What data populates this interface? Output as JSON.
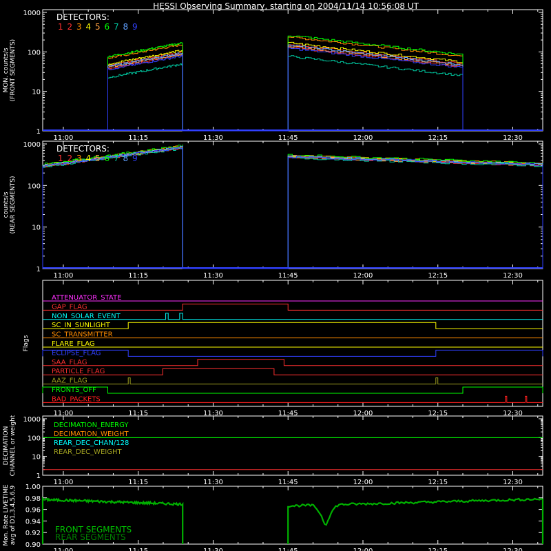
{
  "title": "HESSI Observing Summary, starting on 2004/11/14 10:56:08 UT",
  "time_ticks": [
    "11:00",
    "11:15",
    "11:30",
    "11:45",
    "12:00",
    "12:15",
    "12:30"
  ],
  "time_range_minutes": [
    -4.13,
    96.0
  ],
  "detector_colors": [
    "#ff3030",
    "#ff3030",
    "#ff8c00",
    "#ffff00",
    "#ffa040",
    "#00ff00",
    "#00c8a0",
    "#60a0ff",
    "#3040ff"
  ],
  "chart_data": [
    {
      "type": "line",
      "ylabel": [
        "MON. counts/s",
        "(FRONT SEGMENTS)"
      ],
      "ylim": [
        1,
        1000
      ],
      "log": true,
      "yticks": [
        "1",
        "10",
        "100",
        "1000"
      ],
      "legend_title": "DETECTORS:",
      "legend_numbers": [
        "1",
        "2",
        "3",
        "4",
        "5",
        "6",
        "7",
        "8",
        "9"
      ],
      "segments": [
        {
          "t_start": 8.9,
          "t_end": 23.9,
          "start_value": 45,
          "end_value": 100
        },
        {
          "t_start": 45.0,
          "t_end": 80.0,
          "start_value": 155,
          "end_value": 50
        }
      ],
      "detector_factors": [
        1.0,
        0.85,
        1.55,
        1.1,
        0.9,
        1.7,
        0.5,
        0.95,
        0.8
      ]
    },
    {
      "type": "line",
      "ylabel": [
        "counts/s",
        "(REAR SEGMENTS)"
      ],
      "ylim": [
        1,
        1000
      ],
      "log": true,
      "yticks": [
        "1",
        "10",
        "100",
        "1000"
      ],
      "legend_title": "DETECTORS:",
      "legend_numbers": [
        "1",
        "2",
        "3",
        "4",
        "5",
        "6",
        "7",
        "8",
        "9"
      ],
      "segments": [
        {
          "t_start": -4.13,
          "t_end": 23.9,
          "start_value": 300,
          "end_value": 850
        },
        {
          "t_start": 45.0,
          "t_end": 96.0,
          "start_value": 500,
          "end_value": 320
        }
      ],
      "detector_factors": [
        1.0,
        0.95,
        1.05,
        1.0,
        0.97,
        1.08,
        0.93,
        1.0,
        0.98
      ]
    },
    {
      "type": "line",
      "ylabel": [
        "Flags"
      ],
      "flags": [
        {
          "name": "ATTENUATOR_STATE",
          "color": "#ff30ff",
          "highs": []
        },
        {
          "name": "GAP_FLAG",
          "color": "#ff3030",
          "highs": [
            [
              23.9,
              45.0
            ]
          ]
        },
        {
          "name": "NON_SOLAR_EVENT",
          "color": "#00ffff",
          "highs": [
            [
              20.5,
              21.0
            ],
            [
              23.3,
              23.9
            ]
          ]
        },
        {
          "name": "SC_IN_SUNLIGHT",
          "color": "#ffff00",
          "highs": [
            [
              13.0,
              74.6
            ]
          ]
        },
        {
          "name": "SC_TRANSMITTER",
          "color": "#ff8c00",
          "highs": []
        },
        {
          "name": "FLARE_FLAG",
          "color": "#ffff00",
          "highs": []
        },
        {
          "name": "ECLIPSE_FLAG",
          "color": "#3040ff",
          "inverted": true,
          "highs": [
            [
              -4.13,
              13.0
            ],
            [
              74.6,
              96.0
            ]
          ]
        },
        {
          "name": "SAA_FLAG",
          "color": "#ff3030",
          "highs": [
            [
              26.9,
              44.2
            ]
          ]
        },
        {
          "name": "PARTICLE_FLAG",
          "color": "#ff3030",
          "highs": [
            [
              19.9,
              42.2
            ]
          ]
        },
        {
          "name": "AAZ_FLAG",
          "color": "#a0a020",
          "highs": [
            [
              13.0,
              13.4
            ],
            [
              74.6,
              75.0
            ]
          ]
        },
        {
          "name": "FRONTS_OFF",
          "color": "#00ff00",
          "inverted": true,
          "highs": [
            [
              -4.13,
              8.9
            ],
            [
              80.0,
              96.0
            ]
          ]
        },
        {
          "name": "BAD_PACKETS",
          "color": "#ff2020",
          "highs": [
            [
              88.5,
              88.8
            ],
            [
              92.5,
              92.8
            ]
          ]
        }
      ]
    },
    {
      "type": "line",
      "ylabel": [
        "DECIMATION",
        "CHANNEL or weight"
      ],
      "ylim": [
        1,
        1000
      ],
      "log": true,
      "yticks": [
        "1",
        "10",
        "100",
        "1000"
      ],
      "legend": [
        {
          "name": "DECIMATION_ENERGY",
          "color": "#00ff00"
        },
        {
          "name": "DECIMATION_WEIGHT",
          "color": "#ff8c00"
        },
        {
          "name": "REAR_DEC_CHAN/128",
          "color": "#00ffff"
        },
        {
          "name": "REAR_DEC_WEIGHT",
          "color": "#a0a020"
        }
      ],
      "series": [
        {
          "name": "DECIMATION_ENERGY",
          "color": "#00ff00",
          "value": 100
        },
        {
          "name": "DECIMATION_WEIGHT",
          "color": "#ff3030",
          "value": 2
        }
      ]
    },
    {
      "type": "line",
      "ylabel": [
        "Mon. Rate LIVETIME",
        "avg of D1,3,4,5,6,9"
      ],
      "ylim": [
        0.9,
        1.0
      ],
      "log": false,
      "yticks": [
        "0.90",
        "0.92",
        "0.94",
        "0.96",
        "0.98",
        "1.00"
      ],
      "legend": [
        {
          "name": "FRONT SEGMENTS",
          "color": "#00c000"
        },
        {
          "name": "REAR SEGMENTS",
          "color": "#008000"
        }
      ],
      "segments": [
        {
          "t_start": -4.13,
          "t_end": 23.9,
          "start_value": 0.977,
          "end_value": 0.969
        },
        {
          "t_start": 45.0,
          "t_end": 96.0,
          "start_value": 0.966,
          "end_value": 0.978
        }
      ],
      "dip": {
        "t": 52.5,
        "value": 0.931
      }
    }
  ]
}
